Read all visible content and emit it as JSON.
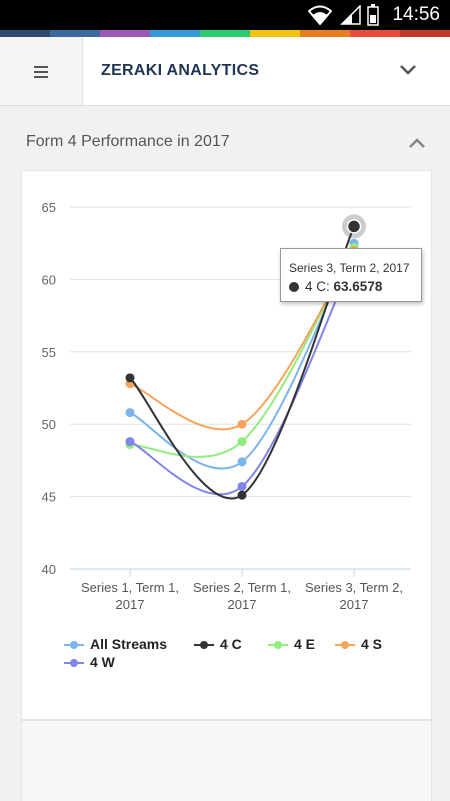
{
  "status_bar": {
    "time": "14:56"
  },
  "brand_strip_colors": [
    "#2e4a6b",
    "#3b6aa0",
    "#9b59b6",
    "#3498db",
    "#2ecc71",
    "#f1c40f",
    "#e67e22",
    "#e74c3c",
    "#c0392b"
  ],
  "app_bar": {
    "title": "ZERAKI ANALYTICS"
  },
  "section": {
    "title": "Form 4 Performance in 2017"
  },
  "tooltip": {
    "header": "Series 3, Term 2, 2017",
    "series": "4 C",
    "value": "63.6578"
  },
  "chart_data": {
    "type": "line",
    "categories": [
      "Series 1, Term 1, 2017",
      "Series 2, Term 1, 2017",
      "Series 3, Term 2, 2017"
    ],
    "y_ticks": [
      "65",
      "60",
      "55",
      "50",
      "45",
      "40"
    ],
    "ylim": [
      40,
      65
    ],
    "grid": true,
    "legend_position": "bottom",
    "series": [
      {
        "name": "All Streams",
        "color": "#7cb5ec",
        "values": [
          50.8,
          47.4,
          62.5
        ]
      },
      {
        "name": "4 C",
        "color": "#333333",
        "values": [
          53.2,
          45.1,
          63.6578
        ]
      },
      {
        "name": "4 E",
        "color": "#90ed7d",
        "values": [
          48.6,
          48.8,
          62.2
        ]
      },
      {
        "name": "4 S",
        "color": "#f7a35c",
        "values": [
          52.8,
          50.0,
          62.0
        ]
      },
      {
        "name": "4 W",
        "color": "#8085e9",
        "values": [
          48.8,
          45.7,
          61.5
        ]
      }
    ]
  }
}
